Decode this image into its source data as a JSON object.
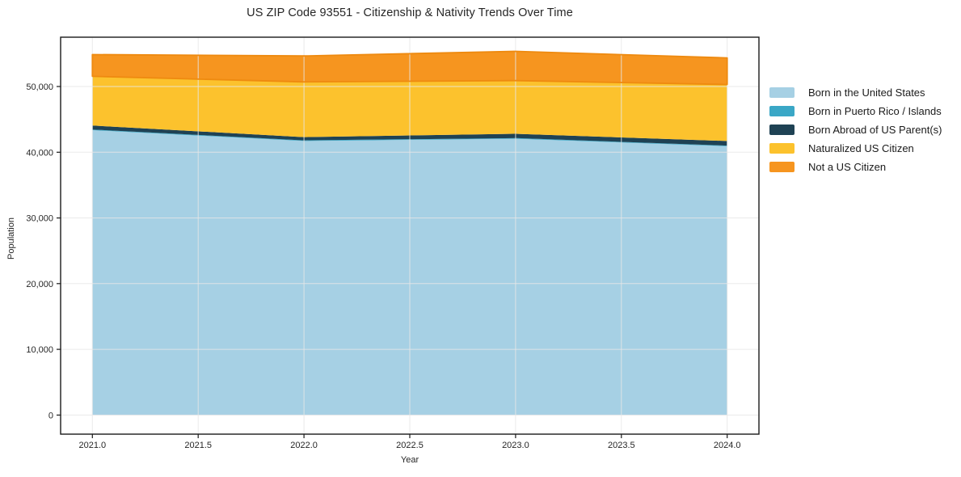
{
  "title": "US ZIP Code 93551 - Citizenship & Nativity Trends Over Time",
  "chart_data": {
    "type": "area",
    "stacked": true,
    "title": "US ZIP Code 93551 - Citizenship & Nativity Trends Over Time",
    "xlabel": "Year",
    "ylabel": "Population",
    "x": [
      2021,
      2022,
      2023,
      2024
    ],
    "series": [
      {
        "name": "Born in the United States",
        "color": "#a6d0e4",
        "values": [
          43350,
          41700,
          42050,
          40900
        ]
      },
      {
        "name": "Born in Puerto Rico / Islands",
        "color": "#3aa7c6",
        "values": [
          100,
          100,
          100,
          100
        ]
      },
      {
        "name": "Born Abroad of US Parent(s)",
        "color": "#1f4254",
        "values": [
          600,
          500,
          650,
          700
        ]
      },
      {
        "name": "Naturalized US Citizen",
        "color": "#fcc22d",
        "values": [
          7500,
          8400,
          8100,
          8600
        ]
      },
      {
        "name": "Not a US Citizen",
        "color": "#f6951f",
        "values": [
          3300,
          3950,
          4450,
          4050
        ],
        "edge_color": "#ee8a10"
      }
    ],
    "totals": [
      54850,
      54650,
      55350,
      54250
    ],
    "xlim": [
      2020.85,
      2024.15
    ],
    "ylim": [
      -2900,
      57500
    ],
    "xticks": {
      "values": [
        2021.0,
        2021.5,
        2022.0,
        2022.5,
        2023.0,
        2023.5,
        2024.0
      ],
      "labels": [
        "2021.0",
        "2021.5",
        "2022.0",
        "2022.5",
        "2023.0",
        "2023.5",
        "2024.0"
      ]
    },
    "yticks": {
      "values": [
        0,
        10000,
        20000,
        30000,
        40000,
        50000
      ],
      "labels": [
        "0",
        "10,000",
        "20,000",
        "30,000",
        "40,000",
        "50,000"
      ]
    },
    "grid": true,
    "legend_position": "right of plot, no frame",
    "colors": {
      "grid": "#e7e7e7",
      "spine": "#1a1a1a",
      "text": "#262626"
    }
  }
}
